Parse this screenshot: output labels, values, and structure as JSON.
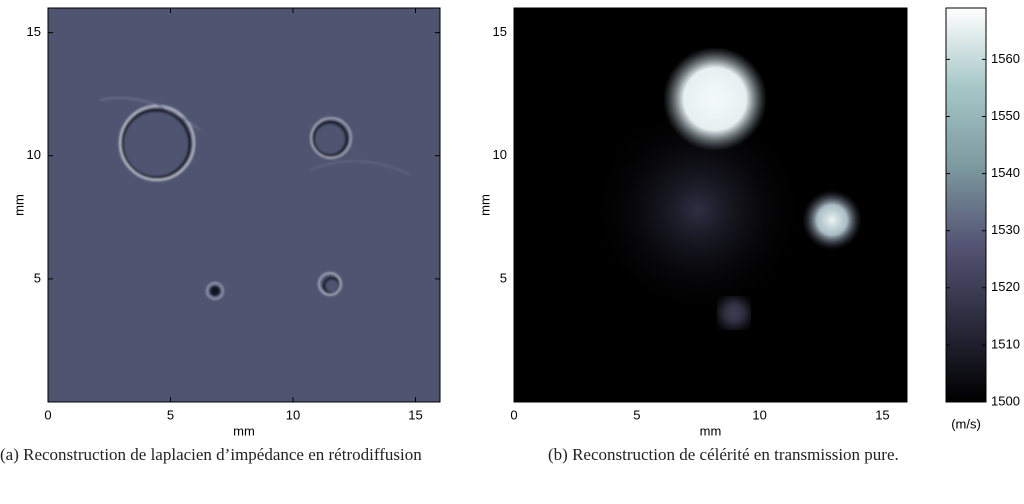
{
  "chart_data": [
    {
      "type": "image",
      "xlabel": "mm",
      "ylabel": "mm",
      "xlim": [
        0,
        16
      ],
      "ylim": [
        0,
        16
      ],
      "xticks": [
        0,
        5,
        10,
        15
      ],
      "yticks": [
        5,
        10,
        15
      ],
      "caption": "(a) Reconstruction de laplacien d’impédance en rétrodiffusion"
    },
    {
      "type": "image",
      "xlabel": "mm",
      "ylabel": "mm",
      "xlim": [
        0,
        16
      ],
      "ylim": [
        0,
        16
      ],
      "xticks": [
        0,
        5,
        10,
        15
      ],
      "yticks": [
        5,
        10,
        15
      ],
      "caption": "(b) Reconstruction de célérité en transmission pure.",
      "colorbar": {
        "clim": [
          1500,
          1569
        ],
        "ticks": [
          1500,
          1510,
          1520,
          1530,
          1540,
          1550,
          1560
        ],
        "label": "(m/s)",
        "colors": [
          "#000000",
          "#2a2a3c",
          "#545474",
          "#7d9aa0",
          "#a7c7c7",
          "#ffffff"
        ]
      }
    }
  ]
}
